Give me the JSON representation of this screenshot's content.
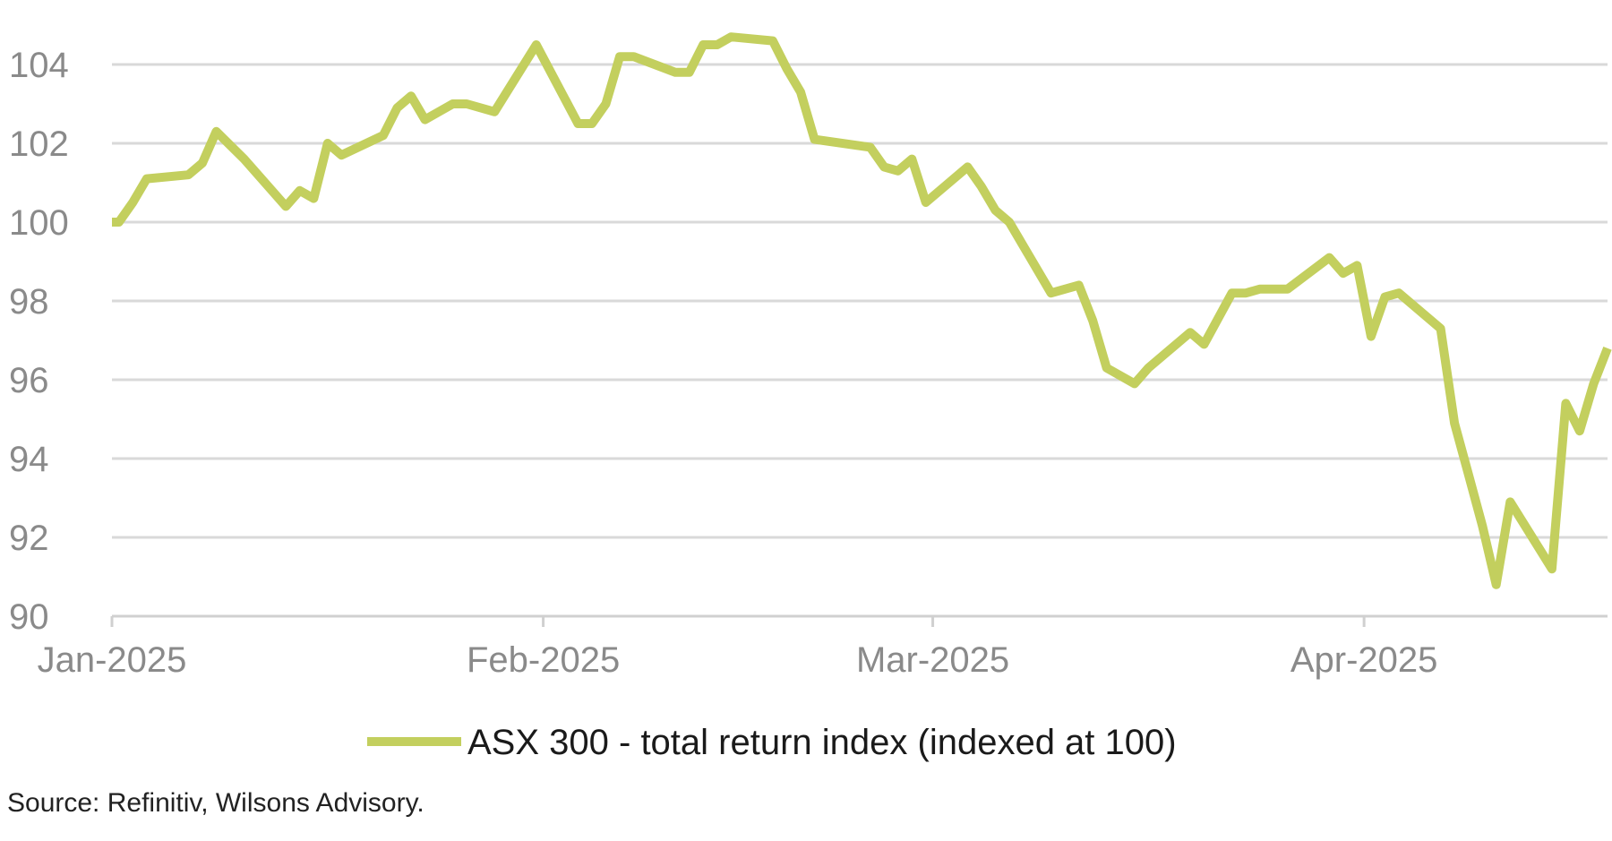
{
  "chart_data": {
    "type": "line",
    "title": "",
    "xlabel": "",
    "ylabel": "",
    "ylim": [
      90,
      105
    ],
    "yticks": [
      90,
      92,
      94,
      96,
      98,
      100,
      102,
      104
    ],
    "xticks": [
      {
        "label": "Jan-2025",
        "day": 0
      },
      {
        "label": "Feb-2025",
        "day": 31
      },
      {
        "label": "Mar-2025",
        "day": 59
      },
      {
        "label": "Apr-2025",
        "day": 90
      }
    ],
    "grid": true,
    "legend_position": "bottom-center",
    "series": [
      {
        "name": "ASX 300 - total return index (indexed at 100)",
        "color": "#c3cf5e",
        "x": [
          0,
          0.5,
          1.5,
          2.5,
          5.5,
          6.5,
          7.5,
          9.5,
          12.5,
          13.5,
          14.5,
          15.5,
          16.5,
          19.5,
          20.5,
          21.5,
          22.5,
          24.5,
          25.5,
          27.5,
          30.5,
          33.5,
          34.5,
          35.5,
          36.5,
          37.5,
          40.5,
          41.5,
          42.5,
          43.5,
          44.5,
          47.5,
          48.5,
          49.5,
          50.5,
          54.5,
          55.5,
          56.5,
          57.5,
          58.5,
          61.5,
          62.5,
          63.5,
          64.5,
          67.5,
          68.5,
          69.5,
          70.5,
          71.5,
          73.5,
          74.5,
          75.5,
          76.5,
          77.5,
          78.5,
          80.5,
          81.5,
          82.5,
          83.5,
          84.5,
          87.5,
          88.5,
          89.5,
          90.5,
          91.5,
          92.5,
          95.5,
          96.5,
          97.5,
          98.5,
          99.5,
          100.5,
          103.5,
          104.5,
          105.5,
          106.5,
          107.5
        ],
        "values": [
          100.0,
          100.0,
          100.5,
          101.1,
          101.2,
          101.5,
          102.3,
          101.6,
          100.4,
          100.8,
          100.6,
          102.0,
          101.7,
          102.2,
          102.9,
          103.2,
          102.6,
          103.0,
          103.0,
          102.8,
          104.5,
          102.5,
          102.5,
          103.0,
          104.2,
          104.2,
          103.8,
          103.8,
          104.5,
          104.5,
          104.7,
          104.6,
          103.9,
          103.3,
          102.1,
          101.9,
          101.4,
          101.3,
          101.6,
          100.5,
          101.4,
          100.9,
          100.3,
          100.0,
          98.2,
          98.3,
          98.4,
          97.5,
          96.3,
          95.9,
          96.3,
          96.6,
          96.9,
          97.2,
          96.9,
          98.2,
          98.2,
          98.3,
          98.3,
          98.3,
          99.1,
          98.7,
          98.9,
          97.1,
          98.1,
          98.2,
          97.3,
          94.9,
          93.6,
          92.3,
          90.8,
          92.9,
          91.2,
          95.4,
          94.7,
          95.9,
          96.8
        ]
      }
    ]
  },
  "source_text": "Source: Refinitiv, Wilsons Advisory."
}
